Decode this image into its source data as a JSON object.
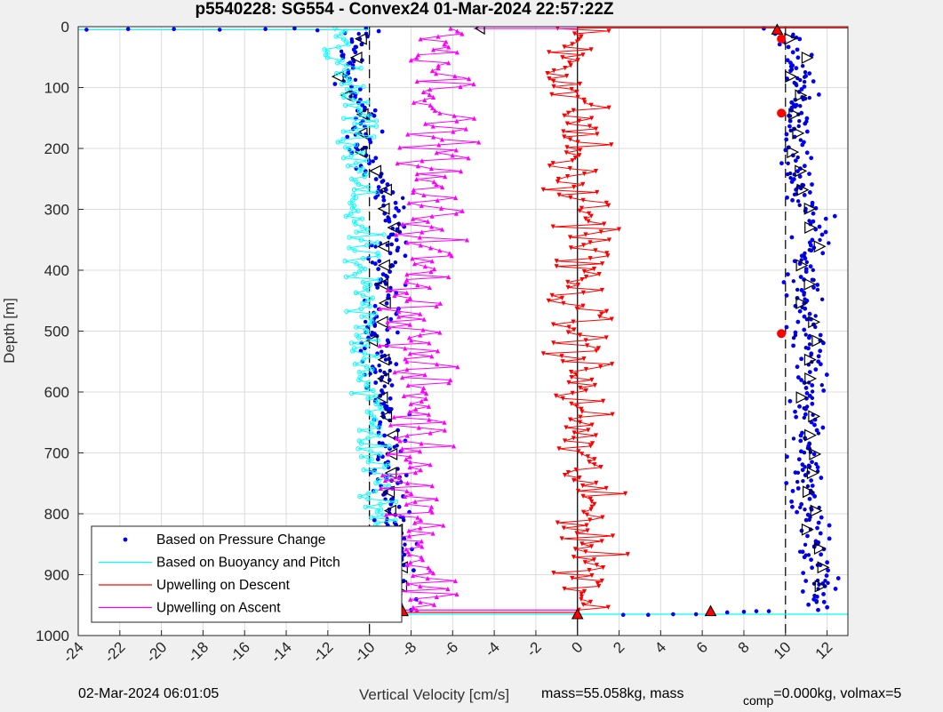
{
  "chart_data": {
    "type": "scatter",
    "title": "p5540228: SG554 - Convex24 01-Mar-2024 22:57:22Z",
    "xlabel": "Vertical Velocity [cm/s]",
    "ylabel": "Depth [m]",
    "xlim": [
      -24,
      13
    ],
    "ylim": [
      0,
      1000
    ],
    "y_reversed": true,
    "grid": true,
    "xticks": [
      -24,
      -22,
      -20,
      -18,
      -16,
      -14,
      -12,
      -10,
      -8,
      -6,
      -4,
      -2,
      0,
      2,
      4,
      6,
      8,
      10,
      12
    ],
    "yticks": [
      0,
      100,
      200,
      300,
      400,
      500,
      600,
      700,
      800,
      900,
      1000
    ],
    "reference_lines": [
      {
        "name": "zero",
        "x": 0,
        "style": "solid"
      },
      {
        "name": "descent-target",
        "x": -10,
        "style": "dashed"
      },
      {
        "name": "ascent-target",
        "x": 10,
        "style": "dashed"
      }
    ],
    "legend_position": "bottom-left",
    "series": [
      {
        "name": "Based on Pressure Change",
        "color": "#0000ff",
        "marker": "dot",
        "profiles": [
          {
            "part": "descent",
            "depth": [
              0,
              50,
              100,
              150,
              200,
              250,
              300,
              350,
              400,
              450,
              500,
              550,
              600,
              650,
              700,
              750,
              800,
              850,
              900,
              950
            ],
            "mean": [
              -10.2,
              -11.0,
              -10.8,
              -10.3,
              -10.5,
              -9.5,
              -9.0,
              -9.0,
              -9.2,
              -9.3,
              -9.6,
              -9.3,
              -9.5,
              -9.2,
              -9.0,
              -9.1,
              -8.9,
              -8.8,
              -8.8,
              -8.6
            ]
          },
          {
            "part": "ascent",
            "depth": [
              0,
              50,
              100,
              150,
              200,
              250,
              300,
              350,
              400,
              450,
              500,
              550,
              600,
              650,
              700,
              750,
              800,
              850,
              900,
              950
            ],
            "mean": [
              10.0,
              10.8,
              10.5,
              10.7,
              10.4,
              10.4,
              11.2,
              11.5,
              10.8,
              11.0,
              11.0,
              11.2,
              11.2,
              11.0,
              10.9,
              11.0,
              11.2,
              11.3,
              11.5,
              11.8
            ]
          }
        ]
      },
      {
        "name": "Based on Buoyancy and Pitch",
        "color": "#00ffff",
        "marker": "circle",
        "profiles": [
          {
            "part": "descent",
            "depth": [
              0,
              50,
              100,
              150,
              200,
              250,
              300,
              350,
              400,
              450,
              500,
              550,
              600,
              650,
              700,
              750,
              800,
              850,
              900,
              950
            ],
            "mean": [
              -11.2,
              -11.6,
              -11.0,
              -10.6,
              -10.9,
              -10.6,
              -10.6,
              -10.4,
              -10.6,
              -10.4,
              -10.3,
              -10.0,
              -10.1,
              -9.9,
              -9.8,
              -9.7,
              -9.6,
              -9.6,
              -9.5,
              -9.3
            ]
          }
        ]
      },
      {
        "name": "Upwelling on Descent",
        "color": "#ff0000",
        "marker": "triangle-down",
        "profiles": [
          {
            "part": "descent",
            "depth": [
              0,
              50,
              100,
              150,
              200,
              250,
              300,
              350,
              400,
              450,
              500,
              550,
              600,
              650,
              700,
              750,
              800,
              850,
              900,
              950
            ],
            "mean": [
              0.2,
              -0.2,
              -0.4,
              0.2,
              0.0,
              -0.7,
              0.6,
              0.8,
              0.0,
              0.0,
              0.0,
              0.2,
              0.0,
              0.2,
              0.0,
              0.3,
              0.6,
              0.6,
              0.6,
              0.4
            ]
          }
        ]
      },
      {
        "name": "Upwelling on Ascent",
        "color": "#ff00ff",
        "marker": "triangle-up",
        "profiles": [
          {
            "part": "ascent",
            "depth": [
              0,
              50,
              100,
              150,
              200,
              250,
              300,
              350,
              400,
              450,
              500,
              550,
              600,
              650,
              700,
              750,
              800,
              850,
              900,
              950
            ],
            "mean": [
              -6.0,
              -6.5,
              -6.2,
              -6.6,
              -6.5,
              -7.4,
              -7.1,
              -6.9,
              -7.6,
              -7.7,
              -7.9,
              -7.8,
              -7.5,
              -7.6,
              -7.6,
              -7.9,
              -7.6,
              -7.7,
              -7.2,
              -7.2
            ]
          }
        ]
      }
    ],
    "markers": [
      {
        "kind": "red-dot",
        "x": 9.8,
        "y": 20
      },
      {
        "kind": "red-dot",
        "x": 9.8,
        "y": 142
      },
      {
        "kind": "red-dot",
        "x": 9.8,
        "y": 504
      },
      {
        "kind": "red-triangle",
        "x": -8.4,
        "y": 960
      },
      {
        "kind": "red-triangle",
        "x": 6.4,
        "y": 960
      },
      {
        "kind": "red-triangle",
        "x": 9.6,
        "y": 5
      },
      {
        "kind": "red-triangle",
        "x": 0.0,
        "y": 965
      }
    ]
  },
  "footer": {
    "timestamp": "02-Mar-2024 06:01:05",
    "mass_text": "mass=55.058kg, mass",
    "comp_sub": "comp",
    "volmax_text": "=0.000kg, volmax=5"
  }
}
